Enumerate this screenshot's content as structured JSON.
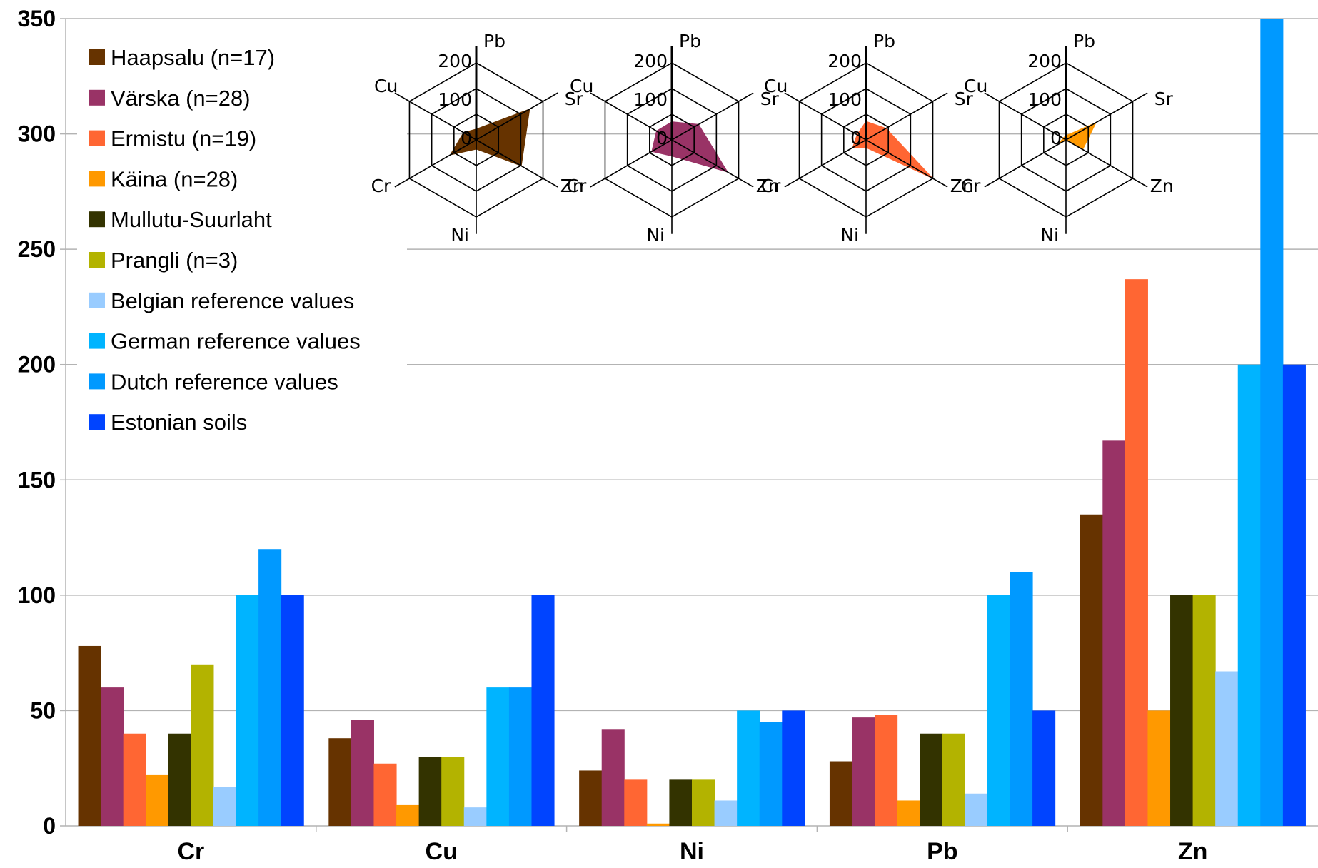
{
  "chart_data": [
    {
      "type": "bar",
      "title": "",
      "xlabel": "",
      "ylabel": "",
      "ylim": [
        0,
        350
      ],
      "yticks": [
        0,
        50,
        100,
        150,
        200,
        250,
        300,
        350
      ],
      "categories": [
        "Cr",
        "Cu",
        "Ni",
        "Pb",
        "Zn"
      ],
      "grid": "horizontal",
      "legend_position": "top-left",
      "series": [
        {
          "name": "Haapsalu (n=17)",
          "color": "#663300",
          "values": [
            78,
            38,
            24,
            28,
            135
          ]
        },
        {
          "name": "Värska (n=28)",
          "color": "#993366",
          "values": [
            60,
            46,
            42,
            47,
            167
          ]
        },
        {
          "name": "Ermistu (n=19)",
          "color": "#ff6633",
          "values": [
            40,
            27,
            20,
            48,
            237
          ]
        },
        {
          "name": "Käina (n=28)",
          "color": "#ff9900",
          "values": [
            22,
            9,
            1,
            11,
            50
          ]
        },
        {
          "name": "Mullutu-Suurlaht",
          "color": "#333300",
          "values": [
            40,
            30,
            20,
            40,
            100
          ]
        },
        {
          "name": "Prangli (n=3)",
          "color": "#b3b300",
          "values": [
            70,
            30,
            20,
            40,
            100
          ]
        },
        {
          "name": "Belgian reference values",
          "color": "#99ccff",
          "values": [
            17,
            8,
            11,
            14,
            67
          ]
        },
        {
          "name": "German reference values",
          "color": "#00b4ff",
          "values": [
            100,
            60,
            50,
            100,
            200
          ]
        },
        {
          "name": "Dutch reference values",
          "color": "#0099ff",
          "values": [
            120,
            60,
            45,
            110,
            350
          ]
        },
        {
          "name": "Estonian soils",
          "color": "#0044ff",
          "values": [
            100,
            100,
            50,
            50,
            200
          ]
        }
      ]
    },
    {
      "type": "radar",
      "axes": [
        "Pb",
        "Sr",
        "Zn",
        "Ni",
        "Cr",
        "Cu"
      ],
      "ticks": [
        "0",
        "100",
        "200"
      ],
      "rmax": 200,
      "charts": [
        {
          "series": "Haapsalu (n=17)",
          "color": "#663300",
          "values": [
            28,
            160,
            135,
            24,
            78,
            38
          ]
        },
        {
          "series": "Värska (n=28)",
          "color": "#993366",
          "values": [
            47,
            80,
            167,
            42,
            60,
            46
          ]
        },
        {
          "series": "Ermistu (n=19)",
          "color": "#ff6633",
          "values": [
            48,
            60,
            237,
            20,
            40,
            27
          ]
        },
        {
          "series": "Käina (n=28)",
          "color": "#ff9900",
          "values": [
            11,
            90,
            50,
            1,
            22,
            9
          ]
        }
      ]
    }
  ]
}
